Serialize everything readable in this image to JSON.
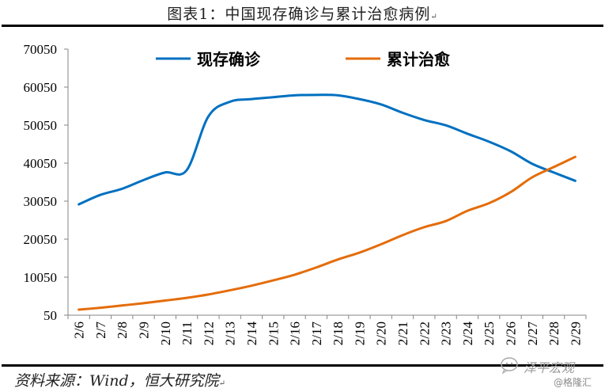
{
  "title": "图表1：中国现存确诊与累计治愈病例",
  "return_mark": "↵",
  "source": "资料来源：Wind，恒大研究院",
  "watermark": {
    "name": "泽平宏观",
    "handle": "@格隆汇",
    "icon": "wechat-icon"
  },
  "colors": {
    "series_current": "#0070C0",
    "series_cured": "#E46C0A",
    "axis": "#868686"
  },
  "chart_data": {
    "type": "line",
    "title": "图表1：中国现存确诊与累计治愈病例",
    "xlabel": "",
    "ylabel": "",
    "categories": [
      "2/6",
      "2/7",
      "2/8",
      "2/9",
      "2/10",
      "2/11",
      "2/12",
      "2/13",
      "2/14",
      "2/15",
      "2/16",
      "2/17",
      "2/18",
      "2/19",
      "2/20",
      "2/21",
      "2/22",
      "2/23",
      "2/24",
      "2/25",
      "2/26",
      "2/27",
      "2/28",
      "2/29"
    ],
    "yticks": [
      50,
      10050,
      20050,
      30050,
      40050,
      50050,
      60050,
      70050
    ],
    "ytick_labels": [
      "50",
      "10050",
      "20050",
      "30050",
      "40050",
      "50050",
      "60050",
      "70050"
    ],
    "ylim": [
      50,
      70050
    ],
    "grid": false,
    "legend_position": "top",
    "series": [
      {
        "name": "现存确诊",
        "color": "#0070C0",
        "values": [
          29200,
          31700,
          33300,
          35600,
          37600,
          38200,
          52300,
          56200,
          56900,
          57400,
          57900,
          58000,
          57900,
          56900,
          55500,
          53300,
          51400,
          50000,
          47800,
          45700,
          43200,
          39900,
          37600,
          35400
        ]
      },
      {
        "name": "累计治愈",
        "color": "#E46C0A",
        "values": [
          1500,
          2000,
          2600,
          3200,
          3900,
          4600,
          5500,
          6600,
          7800,
          9200,
          10700,
          12600,
          14700,
          16500,
          18700,
          21100,
          23200,
          24800,
          27500,
          29500,
          32400,
          36300,
          39000,
          41700
        ]
      }
    ]
  }
}
